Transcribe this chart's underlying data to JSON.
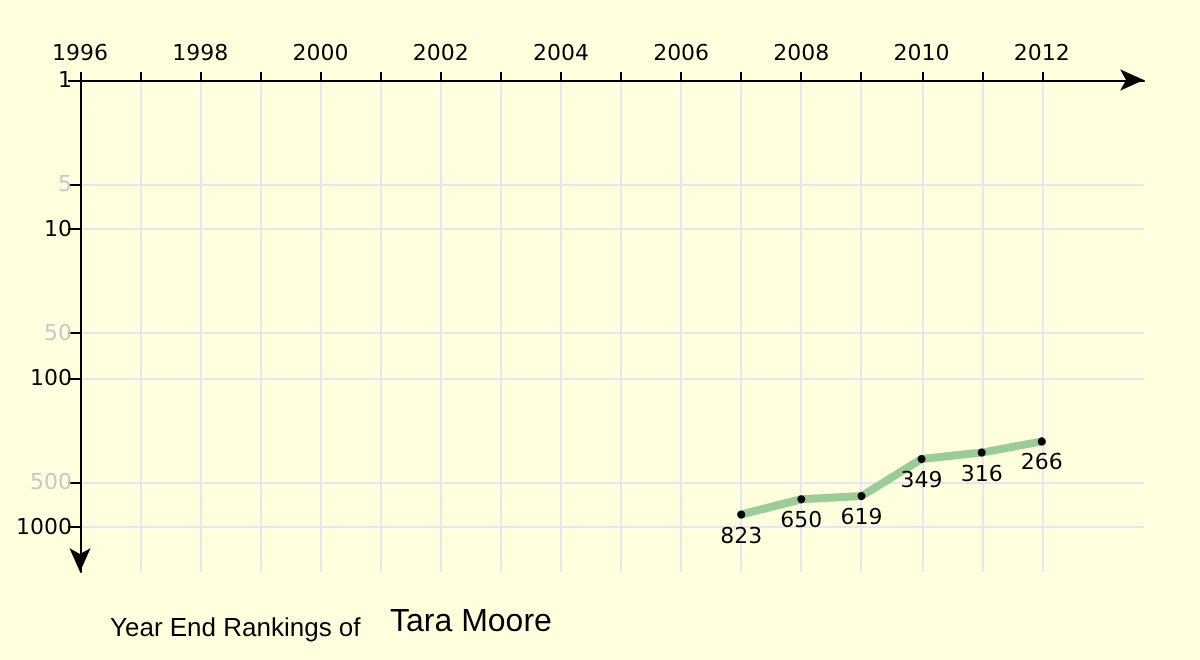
{
  "chart_data": {
    "type": "line",
    "title": "Year End Rankings of",
    "subtitle": "Tara Moore",
    "x": [
      2007,
      2008,
      2009,
      2010,
      2011,
      2012
    ],
    "series": [
      {
        "color": "#99cc99",
        "values": [
          823,
          650,
          619,
          349,
          316,
          266
        ]
      }
    ],
    "data_labels": true,
    "marker": "circle",
    "line_style": "solid",
    "log": "y",
    "grid": true,
    "xlim": [
      1996,
      2013.7
    ],
    "xticks": [
      1996,
      {
        "value": 1997,
        "label": null
      },
      1998,
      {
        "value": 1999,
        "label": null
      },
      2000,
      {
        "value": 2001,
        "label": null
      },
      2002,
      {
        "value": 2003,
        "label": null
      },
      2004,
      {
        "value": 2005,
        "label": null
      },
      2006,
      {
        "value": 2007,
        "label": null
      },
      2008,
      {
        "value": 2009,
        "label": null
      },
      2010,
      {
        "value": 2011,
        "label": null
      },
      2012
    ],
    "ylim": [
      2000,
      1
    ],
    "yticks": [
      1,
      5,
      10,
      50,
      100,
      500,
      1000
    ]
  }
}
